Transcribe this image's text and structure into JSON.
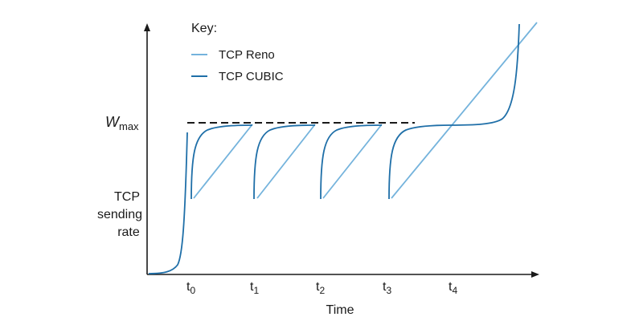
{
  "legend": {
    "title": "Key:",
    "items": [
      {
        "label": "TCP Reno",
        "color": "#74b3dc"
      },
      {
        "label": "TCP CUBIC",
        "color": "#1f6fa8"
      }
    ]
  },
  "labels": {
    "wmax_main": "W",
    "wmax_sub": "max",
    "y_axis": [
      "TCP",
      "sending",
      "rate"
    ],
    "x_axis": "Time"
  },
  "ticks": [
    {
      "main": "t",
      "sub": "0"
    },
    {
      "main": "t",
      "sub": "1"
    },
    {
      "main": "t",
      "sub": "2"
    },
    {
      "main": "t",
      "sub": "3"
    },
    {
      "main": "t",
      "sub": "4"
    }
  ],
  "colors": {
    "axis": "#1a1a1a",
    "wmax_line": "#1a1a1a",
    "reno": "#74b3dc",
    "cubic": "#1f6fa8"
  }
}
